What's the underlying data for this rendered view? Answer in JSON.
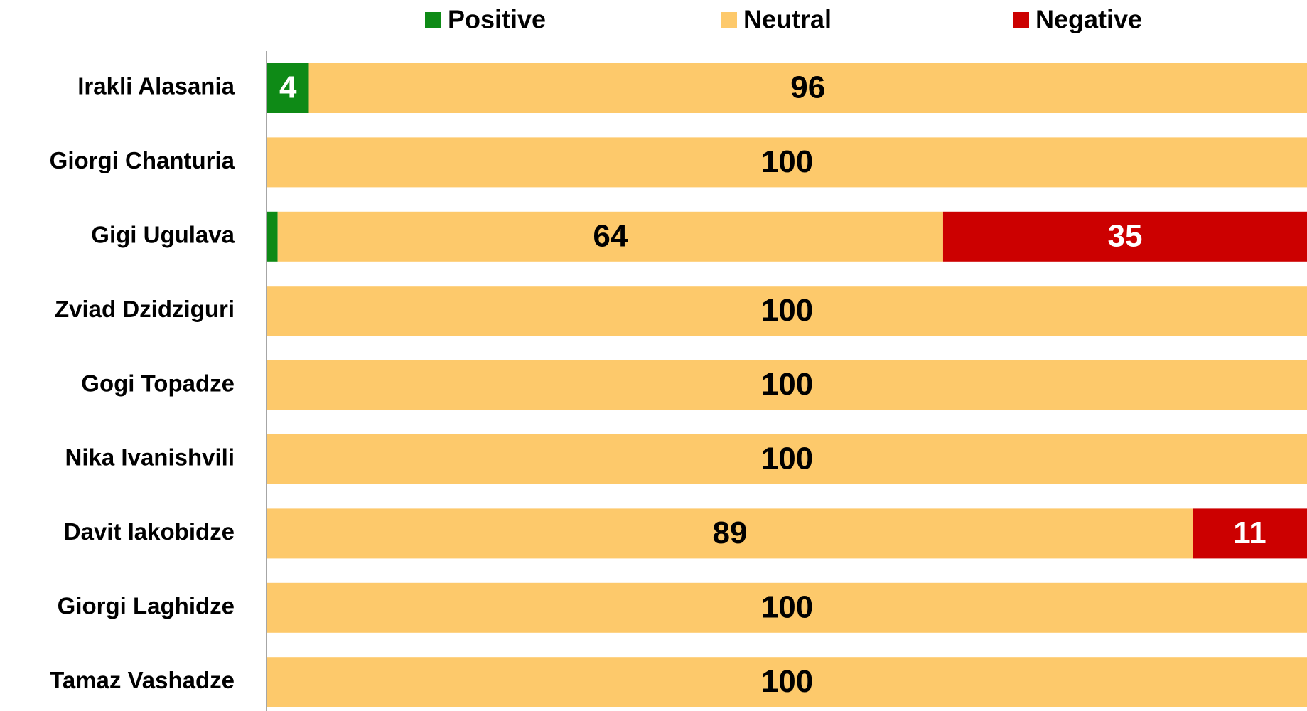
{
  "chart_data": {
    "type": "stacked_barh",
    "categories": [
      "Irakli Alasania",
      "Giorgi Chanturia",
      "Gigi Ugulava",
      "Zviad Dzidziguri",
      "Gogi Topadze",
      "Nika Ivanishvili",
      "Davit Iakobidze",
      "Giorgi Laghidze",
      "Tamaz Vashadze"
    ],
    "series": [
      {
        "name": "Positive",
        "color": "#0e8a16",
        "values": [
          4,
          0,
          1,
          0,
          0,
          0,
          0,
          0,
          0
        ]
      },
      {
        "name": "Neutral",
        "color": "#fdc96b",
        "values": [
          96,
          100,
          64,
          100,
          100,
          100,
          89,
          100,
          100
        ]
      },
      {
        "name": "Negative",
        "color": "#cc0000",
        "values": [
          0,
          0,
          35,
          0,
          0,
          0,
          11,
          0,
          0
        ]
      }
    ],
    "xlim": [
      0,
      100
    ],
    "legend": "top"
  }
}
